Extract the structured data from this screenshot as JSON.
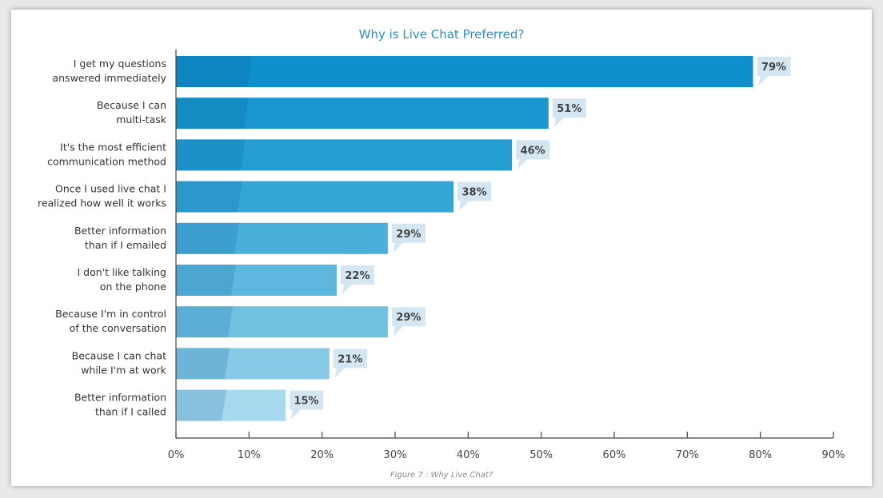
{
  "chart_data": {
    "type": "bar",
    "orientation": "horizontal",
    "title": "Why is Live Chat Preferred?",
    "caption": "Figure 7 : Why Live Chat?",
    "categories": [
      [
        "I get my questions",
        "answered immediately"
      ],
      [
        "Because I can",
        "multi-task"
      ],
      [
        "It's the most efficient",
        "communication method"
      ],
      [
        "Once I used live chat I",
        "realized how well it works"
      ],
      [
        "Better information",
        "than if I emailed"
      ],
      [
        "I don't like talking",
        "on the phone"
      ],
      [
        "Because I'm in control",
        "of the conversation"
      ],
      [
        "Because I can chat",
        "while I'm at work"
      ],
      [
        "Better information",
        "than if I called"
      ]
    ],
    "values": [
      79,
      51,
      46,
      38,
      29,
      22,
      29,
      21,
      15
    ],
    "value_labels": [
      "79%",
      "51%",
      "46%",
      "38%",
      "29%",
      "22%",
      "29%",
      "21%",
      "15%"
    ],
    "xlim": [
      0,
      90
    ],
    "xticks": [
      0,
      10,
      20,
      30,
      40,
      50,
      60,
      70,
      80,
      90
    ],
    "xtick_labels": [
      "0%",
      "10%",
      "20%",
      "30%",
      "40%",
      "50%",
      "60%",
      "70%",
      "80%",
      "90%"
    ],
    "grid": false,
    "bar_colors": [
      "#0f8fcb",
      "#1a97cf",
      "#249dd2",
      "#35a5d6",
      "#4aafdb",
      "#5db7de",
      "#70c0e2",
      "#86cae7",
      "#a6d8ee"
    ],
    "callout_color": "#d3e6f2"
  }
}
